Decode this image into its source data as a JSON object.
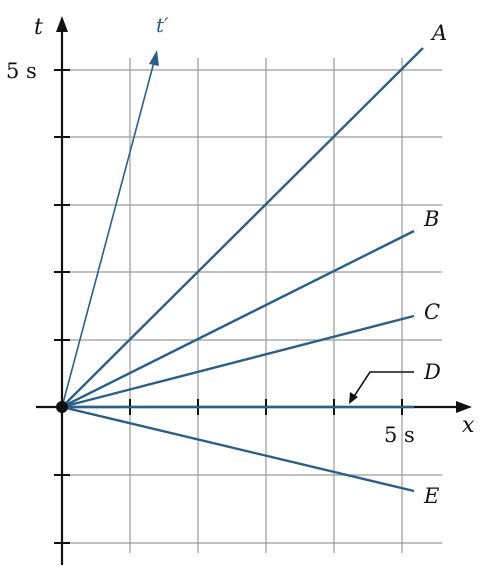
{
  "diagram": {
    "axis_labels": {
      "vertical": "t",
      "horizontal": "x",
      "tilted": "t′"
    },
    "ticks": {
      "time_tick": "5 s",
      "space_tick": "5 s"
    },
    "lines": [
      {
        "id": "A",
        "label": "A",
        "slope": 1.0
      },
      {
        "id": "B",
        "label": "B",
        "slope": 0.5
      },
      {
        "id": "C",
        "label": "C",
        "slope": 0.25
      },
      {
        "id": "D",
        "label": "D",
        "slope": 0.0
      },
      {
        "id": "E",
        "label": "E",
        "slope": -0.25
      }
    ],
    "colors": {
      "lines": "#2b5f86",
      "axes": "#111111",
      "grid": "#9a9a9a",
      "origin_dot": "#111111"
    }
  }
}
